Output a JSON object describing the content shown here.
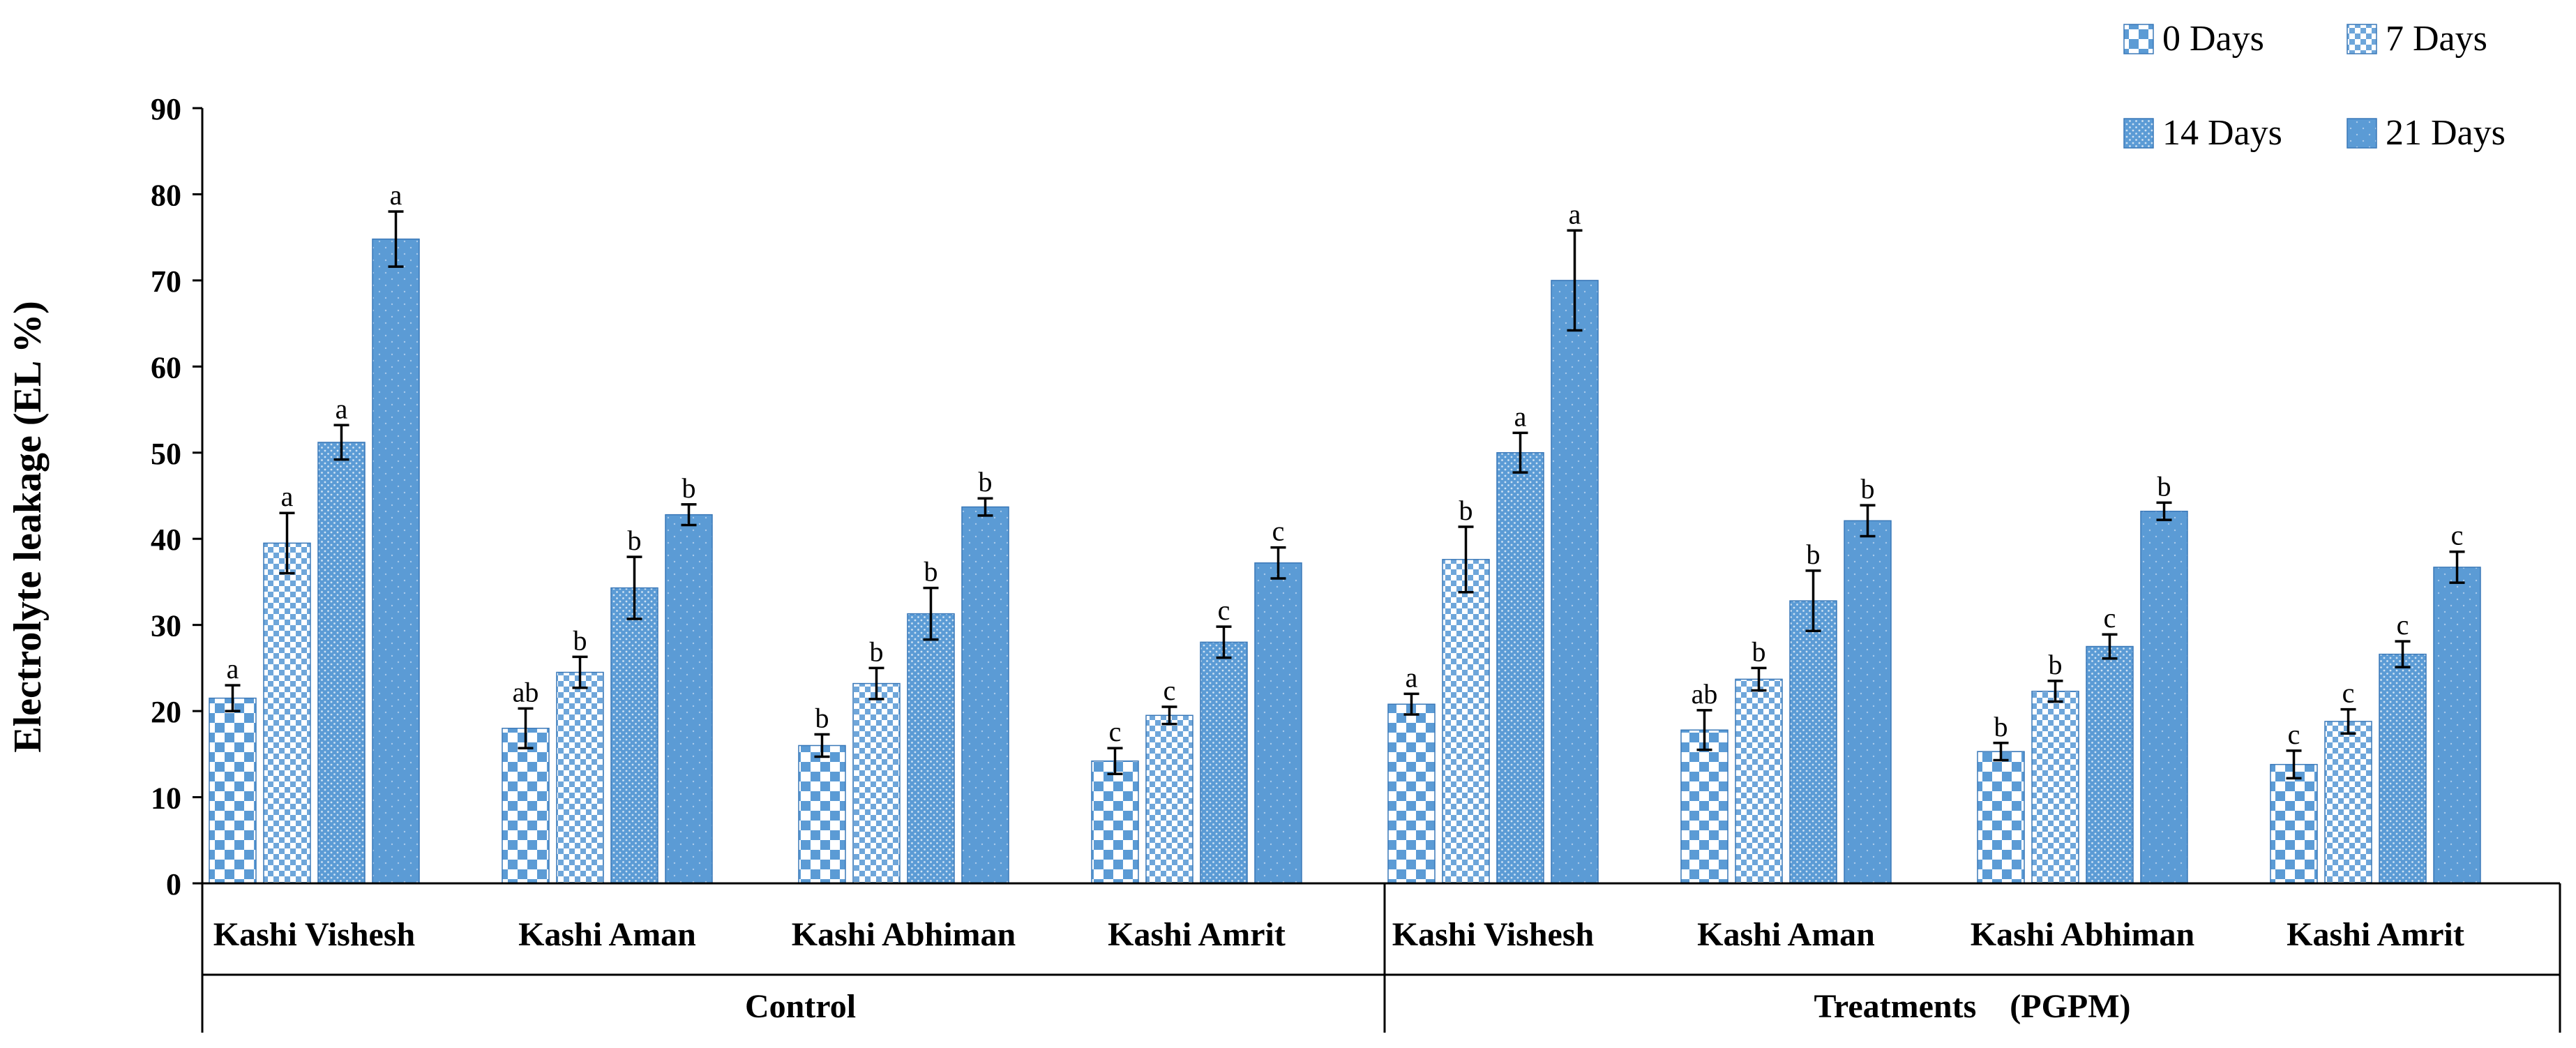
{
  "chart_data": {
    "type": "bar",
    "title": "",
    "ylabel": "Electrolyte leakage (EL %)",
    "xlabel": "",
    "ylim": [
      0,
      90
    ],
    "yticks": [
      0,
      10,
      20,
      30,
      40,
      50,
      60,
      70,
      80,
      90
    ],
    "legend_position": "top-right",
    "grid": false,
    "groups": [
      {
        "label": "Control",
        "categories": [
          "Kashi Vishesh",
          "Kashi Aman",
          "Kashi Abhiman",
          "Kashi Amrit"
        ]
      },
      {
        "label": "Treatments    (PGPM)",
        "categories": [
          "Kashi Vishesh",
          "Kashi Aman",
          "Kashi Abhiman",
          "Kashi Amrit"
        ]
      }
    ],
    "series": [
      {
        "name": "0 Days",
        "pattern": "checker-large",
        "values": [
          21.5,
          18.0,
          16.0,
          14.2,
          20.8,
          17.8,
          15.3,
          13.8
        ],
        "errors": [
          1.5,
          2.3,
          1.3,
          1.5,
          1.2,
          2.3,
          1.0,
          1.6
        ],
        "letters": [
          "a",
          "ab",
          "b",
          "c",
          "a",
          "ab",
          "b",
          "c"
        ]
      },
      {
        "name": "7 Days",
        "pattern": "checker-small",
        "values": [
          39.5,
          24.5,
          23.2,
          19.5,
          37.6,
          23.7,
          22.3,
          18.8
        ],
        "errors": [
          3.5,
          1.8,
          1.8,
          1.0,
          3.8,
          1.3,
          1.2,
          1.4
        ],
        "letters": [
          "a",
          "b",
          "b",
          "c",
          "b",
          "b",
          "b",
          "c"
        ]
      },
      {
        "name": "14 Days",
        "pattern": "stipple-dense",
        "values": [
          51.2,
          34.3,
          31.3,
          28.0,
          50.0,
          32.8,
          27.5,
          26.6
        ],
        "errors": [
          2.0,
          3.6,
          3.0,
          1.8,
          2.3,
          3.5,
          1.4,
          1.5
        ],
        "letters": [
          "a",
          "b",
          "b",
          "c",
          "a",
          "b",
          "c",
          "c"
        ]
      },
      {
        "name": "21 Days",
        "pattern": "stipple-sparse",
        "values": [
          74.8,
          42.8,
          43.7,
          37.2,
          70.0,
          42.1,
          43.2,
          36.7
        ],
        "errors": [
          3.2,
          1.2,
          1.0,
          1.8,
          5.8,
          1.8,
          1.0,
          1.8
        ],
        "letters": [
          "a",
          "b",
          "b",
          "c",
          "a",
          "b",
          "b",
          "c"
        ]
      }
    ],
    "colors": {
      "bar_fill": "#5b9bd5",
      "bar_light": "#ffffff",
      "bar_edge": "#3a78b8",
      "axis": "#000000"
    }
  }
}
